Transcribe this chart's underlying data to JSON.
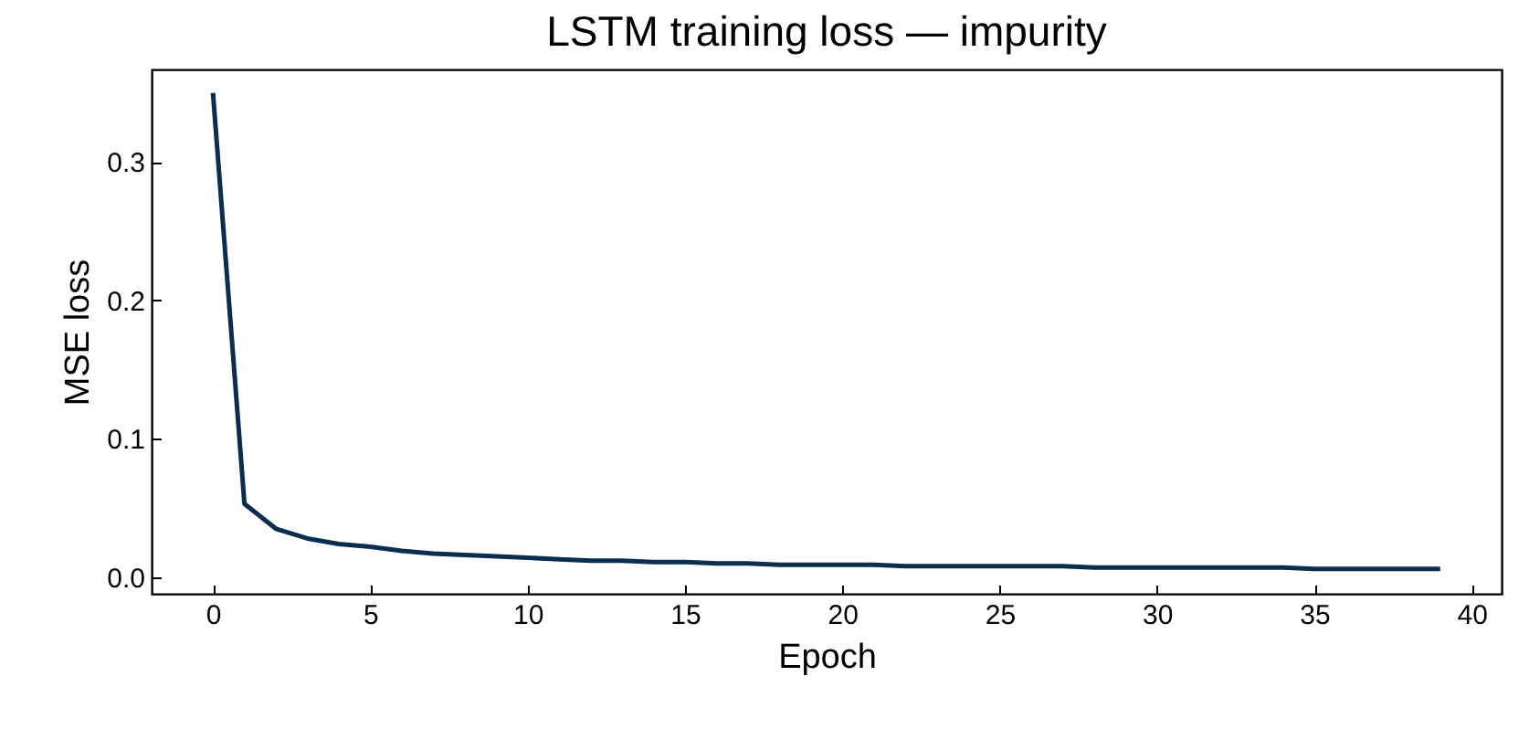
{
  "chart_data": {
    "type": "line",
    "title": "LSTM training loss — impurity",
    "xlabel": "Epoch",
    "ylabel": "MSE loss",
    "x": [
      0,
      1,
      2,
      3,
      4,
      5,
      6,
      7,
      8,
      9,
      10,
      11,
      12,
      13,
      14,
      15,
      16,
      17,
      18,
      19,
      20,
      21,
      22,
      23,
      24,
      25,
      26,
      27,
      28,
      29,
      30,
      31,
      32,
      33,
      34,
      35,
      36,
      37,
      38,
      39
    ],
    "series": [
      {
        "color": "#0b2d4f",
        "values": [
          0.35,
          0.053,
          0.035,
          0.028,
          0.024,
          0.022,
          0.019,
          0.017,
          0.016,
          0.015,
          0.014,
          0.013,
          0.012,
          0.012,
          0.011,
          0.011,
          0.01,
          0.01,
          0.009,
          0.009,
          0.009,
          0.009,
          0.008,
          0.008,
          0.008,
          0.008,
          0.008,
          0.008,
          0.007,
          0.007,
          0.007,
          0.007,
          0.007,
          0.007,
          0.007,
          0.006,
          0.006,
          0.006,
          0.006,
          0.006
        ]
      }
    ],
    "xlim": [
      -1.95,
      40.95
    ],
    "xticks": [
      0,
      5,
      10,
      15,
      20,
      25,
      30,
      35,
      40
    ],
    "ylim": [
      -0.012,
      0.367
    ],
    "yticks": [
      {
        "value": 0,
        "label": "0.0"
      },
      {
        "value": 0.1,
        "label": "0.1"
      },
      {
        "value": 0.2,
        "label": "0.2"
      },
      {
        "value": 0.3,
        "label": "0.3"
      }
    ],
    "grid": false,
    "line_style": "solid",
    "marker": "none"
  }
}
